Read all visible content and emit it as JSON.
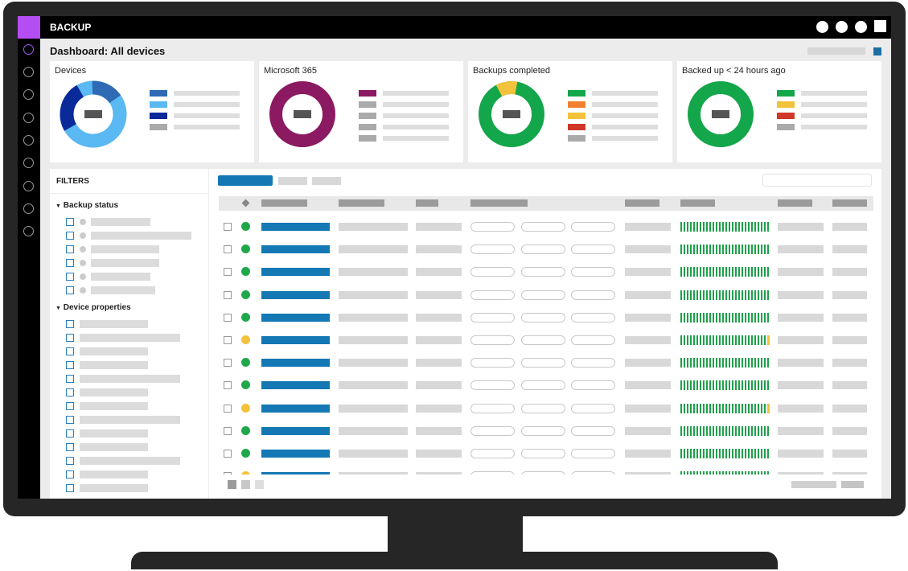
{
  "app": {
    "title": "BACKUP"
  },
  "page": {
    "title": "Dashboard: All devices"
  },
  "colors": {
    "brand": "#b44df2",
    "accent": "#1478b4",
    "success": "#1fa84a",
    "warning": "#f2c23a"
  },
  "cards": [
    {
      "title": "Devices"
    },
    {
      "title": "Microsoft 365"
    },
    {
      "title": "Backups completed"
    },
    {
      "title": "Backed up < 24 hours ago"
    }
  ],
  "filters": {
    "title": "FILTERS",
    "sections": [
      "Backup status",
      "Device properties"
    ]
  },
  "icons": {
    "section_toggle": "triangle-down-icon",
    "select_all": "diamond-icon",
    "status": "status-dot-icon"
  },
  "rows": [
    {
      "status": "green",
      "history_warning": false
    },
    {
      "status": "green",
      "history_warning": false
    },
    {
      "status": "green",
      "history_warning": false
    },
    {
      "status": "green",
      "history_warning": false
    },
    {
      "status": "green",
      "history_warning": false
    },
    {
      "status": "yellow",
      "history_warning": true
    },
    {
      "status": "green",
      "history_warning": false
    },
    {
      "status": "green",
      "history_warning": false
    },
    {
      "status": "yellow",
      "history_warning": true
    },
    {
      "status": "green",
      "history_warning": false
    },
    {
      "status": "green",
      "history_warning": false
    },
    {
      "status": "yellow",
      "history_warning": false
    }
  ]
}
